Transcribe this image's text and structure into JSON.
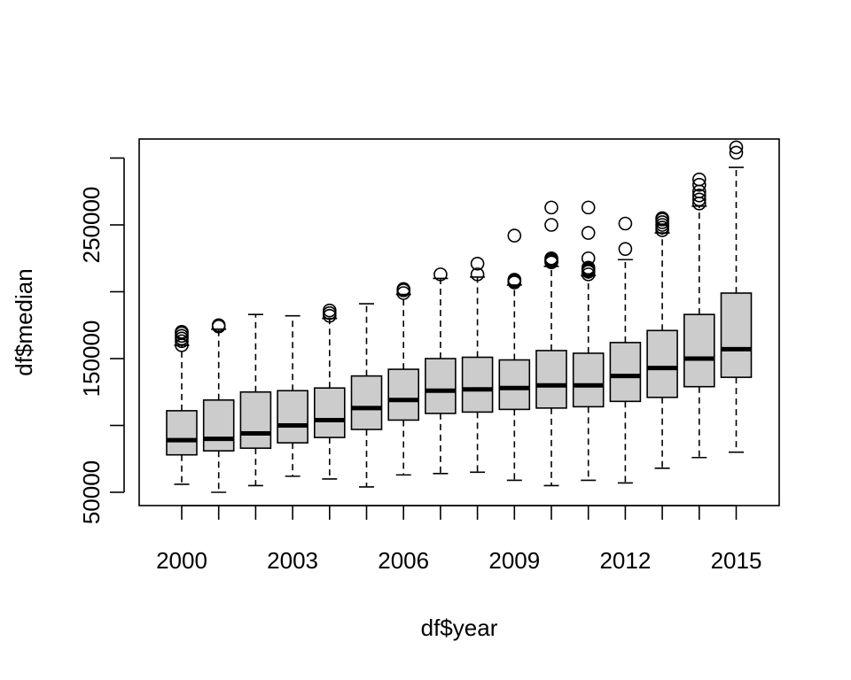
{
  "chart_data": {
    "type": "box",
    "xlabel": "df$year",
    "ylabel": "df$median",
    "ylim": [
      40000,
      300000
    ],
    "yticks": [
      50000,
      100000,
      150000,
      200000,
      250000,
      300000
    ],
    "ytick_labels": [
      "50000",
      "",
      "150000",
      "",
      "250000",
      ""
    ],
    "xtick_labels": [
      "2000",
      "2003",
      "2006",
      "2009",
      "2012",
      "2015"
    ],
    "colors": {
      "box_fill": "#cccccc",
      "stroke": "#000000"
    },
    "boxes": [
      {
        "year": 2000,
        "low": 56000,
        "q1": 78000,
        "median": 89000,
        "q3": 111000,
        "high": 160000,
        "outliers": [
          160000,
          163000,
          165000,
          167000,
          169000,
          170000
        ]
      },
      {
        "year": 2001,
        "low": 50000,
        "q1": 81000,
        "median": 90000,
        "q3": 119000,
        "high": 172000,
        "outliers": [
          174000,
          175000
        ]
      },
      {
        "year": 2002,
        "low": 55000,
        "q1": 83000,
        "median": 94000,
        "q3": 125000,
        "high": 183000,
        "outliers": []
      },
      {
        "year": 2003,
        "low": 62000,
        "q1": 87000,
        "median": 100000,
        "q3": 126000,
        "high": 182000,
        "outliers": []
      },
      {
        "year": 2004,
        "low": 60000,
        "q1": 91000,
        "median": 104000,
        "q3": 128000,
        "high": 180000,
        "outliers": [
          182000,
          184000,
          186000
        ]
      },
      {
        "year": 2005,
        "low": 54000,
        "q1": 97000,
        "median": 113000,
        "q3": 137000,
        "high": 191000,
        "outliers": []
      },
      {
        "year": 2006,
        "low": 63000,
        "q1": 104000,
        "median": 119000,
        "q3": 142000,
        "high": 198000,
        "outliers": [
          199000,
          201000,
          202000
        ]
      },
      {
        "year": 2007,
        "low": 64000,
        "q1": 109000,
        "median": 126000,
        "q3": 150000,
        "high": 210000,
        "outliers": [
          213000
        ]
      },
      {
        "year": 2008,
        "low": 65000,
        "q1": 110000,
        "median": 127000,
        "q3": 151000,
        "high": 211000,
        "outliers": [
          213000,
          221000
        ]
      },
      {
        "year": 2009,
        "low": 59000,
        "q1": 112000,
        "median": 128000,
        "q3": 149000,
        "high": 205000,
        "outliers": [
          207000,
          208000,
          209000,
          242000
        ]
      },
      {
        "year": 2010,
        "low": 55000,
        "q1": 113000,
        "median": 130000,
        "q3": 156000,
        "high": 219000,
        "outliers": [
          222000,
          223000,
          224000,
          225000,
          250000,
          263000
        ]
      },
      {
        "year": 2011,
        "low": 59000,
        "q1": 114000,
        "median": 130000,
        "q3": 154000,
        "high": 212000,
        "outliers": [
          213000,
          215000,
          216000,
          217000,
          218000,
          225000,
          244000,
          263000
        ]
      },
      {
        "year": 2012,
        "low": 57000,
        "q1": 118000,
        "median": 137000,
        "q3": 162000,
        "high": 224000,
        "outliers": [
          232000,
          251000
        ]
      },
      {
        "year": 2013,
        "low": 68000,
        "q1": 121000,
        "median": 143000,
        "q3": 171000,
        "high": 244000,
        "outliers": [
          246000,
          248000,
          250000,
          252000,
          254000,
          255000
        ]
      },
      {
        "year": 2014,
        "low": 76000,
        "q1": 129000,
        "median": 150000,
        "q3": 183000,
        "high": 264000,
        "outliers": [
          266000,
          269000,
          272000,
          275000,
          280000,
          284000
        ]
      },
      {
        "year": 2015,
        "low": 80000,
        "q1": 136000,
        "median": 157000,
        "q3": 199000,
        "high": 293000,
        "outliers": [
          304000,
          308000
        ]
      }
    ]
  }
}
